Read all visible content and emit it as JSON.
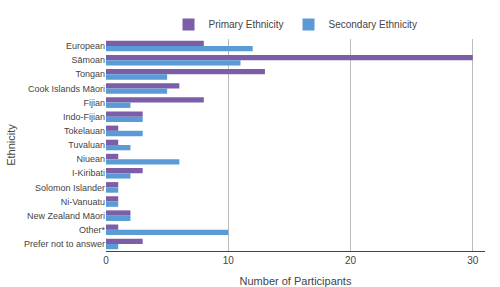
{
  "chart_data": {
    "type": "bar",
    "orientation": "horizontal",
    "categories": [
      "European",
      "Sāmoan",
      "Tongan",
      "Cook Islands Māori",
      "Fijian",
      "Indo-Fijian",
      "Tokelauan",
      "Tuvaluan",
      "Niuean",
      "I-Kiribati",
      "Solomon Islander",
      "Ni-Vanuatu",
      "New Zealand Māori",
      "Other*",
      "Prefer not to answer"
    ],
    "series": [
      {
        "name": "Primary Ethnicity",
        "color": "#7b5ea7",
        "values": [
          8,
          30,
          13,
          6,
          8,
          3,
          1,
          1,
          1,
          3,
          1,
          1,
          2,
          1,
          3
        ]
      },
      {
        "name": "Secondary Ethnicity",
        "color": "#5b9bd5",
        "values": [
          12,
          11,
          5,
          5,
          2,
          3,
          3,
          2,
          6,
          2,
          1,
          1,
          2,
          10,
          1
        ]
      }
    ],
    "xlabel": "Number of Participants",
    "ylabel": "Ethnicity",
    "xlim": [
      0,
      31
    ],
    "xticks": [
      0,
      10,
      20,
      30
    ],
    "grid": true,
    "legend": "top"
  }
}
